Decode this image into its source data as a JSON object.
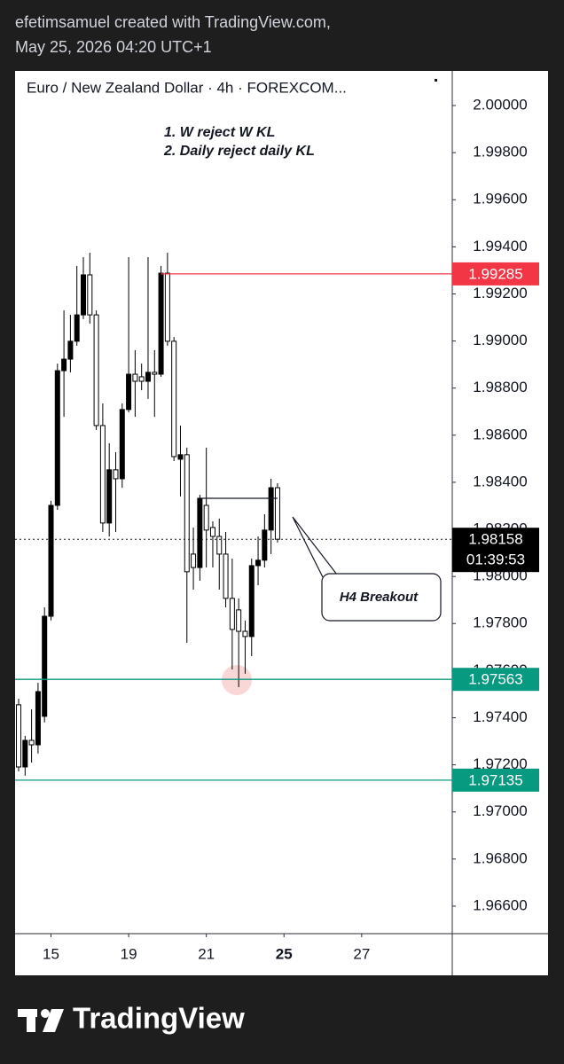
{
  "header": {
    "author_line": "efetimsamuel created with TradingView.com,",
    "date_line": "May 25, 2026 04:20 UTC+1"
  },
  "footer": {
    "brand": "TradingView"
  },
  "chart_data": {
    "type": "candlestick",
    "title": "Euro / New Zealand Dollar · 4h · FOREXCOM...",
    "annotations": [
      "1. W reject W KL",
      "2. Daily reject daily KL"
    ],
    "callout": "H4 Breakout",
    "up_color": "#000000",
    "down_color": "#ffffff",
    "open": [
      1.97455,
      1.97191,
      1.97304,
      1.97285,
      1.97406,
      1.97831,
      1.98302,
      1.98874,
      1.98923,
      1.98999,
      1.99111,
      1.99281,
      1.99111,
      1.98641,
      1.98227,
      1.98453,
      1.98415,
      1.98709,
      1.98859,
      1.98848,
      1.98829,
      1.98867,
      1.98859,
      1.99288,
      1.98999,
      1.98498,
      1.98517,
      1.98095,
      1.98038,
      1.98302,
      1.98208,
      1.9817,
      1.98095,
      1.97907,
      1.97858,
      1.97767,
      1.97745,
      1.98046,
      1.98069,
      1.98197,
      1.98377
    ],
    "high": [
      1.97481,
      1.97323,
      1.97436,
      1.97549,
      1.97869,
      1.98321,
      1.98904,
      1.9913,
      1.99111,
      1.99319,
      1.99356,
      1.99375,
      1.9913,
      1.98735,
      1.98566,
      1.98528,
      1.98735,
      1.99356,
      1.98961,
      1.98904,
      1.99356,
      1.98961,
      1.99319,
      1.99375,
      1.99017,
      1.98641,
      1.98547,
      1.98208,
      1.98347,
      1.98547,
      1.98234,
      1.98246,
      1.98189,
      1.98076,
      1.97907,
      1.97813,
      1.98076,
      1.9817,
      1.98264,
      1.98415,
      1.98396
    ],
    "low": [
      1.97172,
      1.97154,
      1.9721,
      1.97248,
      1.9738,
      1.97813,
      1.98283,
      1.98678,
      1.98867,
      1.9898,
      1.99093,
      1.99074,
      1.98622,
      1.98189,
      1.9817,
      1.98189,
      1.98377,
      1.98697,
      1.98678,
      1.98791,
      1.98754,
      1.98678,
      1.98848,
      1.9898,
      1.9849,
      1.9834,
      1.97718,
      1.97944,
      1.97982,
      1.98038,
      1.98038,
      1.97944,
      1.97869,
      1.97605,
      1.9753,
      1.97587,
      1.97662,
      1.97963,
      1.98038,
      1.98095,
      1.98144
    ],
    "close": [
      1.97191,
      1.97304,
      1.97285,
      1.97511,
      1.97831,
      1.98302,
      1.98874,
      1.98923,
      1.98999,
      1.99111,
      1.99281,
      1.99111,
      1.98641,
      1.98227,
      1.98453,
      1.98415,
      1.98709,
      1.98859,
      1.98829,
      1.98829,
      1.98867,
      1.98859,
      1.99288,
      1.98999,
      1.98509,
      1.98517,
      1.9802,
      1.98038,
      1.98332,
      1.98197,
      1.9817,
      1.98095,
      1.97907,
      1.97775,
      1.97767,
      1.97745,
      1.98046,
      1.98069,
      1.98197,
      1.98377,
      1.98158
    ],
    "countdown": "01:39:53",
    "xlim": [
      -0.55,
      67
    ],
    "xticks": [
      {
        "value": 5,
        "label": "15"
      },
      {
        "value": 17,
        "label": "19"
      },
      {
        "value": 29,
        "label": "21"
      },
      {
        "value": 41,
        "label": "25",
        "bold": true
      },
      {
        "value": 53,
        "label": "27"
      }
    ],
    "ylim": [
      1.96483,
      2.00147
    ],
    "yticks": [
      {
        "value": 2.0,
        "label": "2.00000"
      },
      {
        "value": 1.998,
        "label": "1.99800"
      },
      {
        "value": 1.996,
        "label": "1.99600"
      },
      {
        "value": 1.994,
        "label": "1.99400"
      },
      {
        "value": 1.992,
        "label": "1.99200"
      },
      {
        "value": 1.99,
        "label": "1.99000"
      },
      {
        "value": 1.988,
        "label": "1.98800"
      },
      {
        "value": 1.986,
        "label": "1.98600"
      },
      {
        "value": 1.984,
        "label": "1.98400"
      },
      {
        "value": 1.982,
        "label": "1.98200"
      },
      {
        "value": 1.98,
        "label": "1.98000"
      },
      {
        "value": 1.978,
        "label": "1.97800"
      },
      {
        "value": 1.976,
        "label": "1.97600"
      },
      {
        "value": 1.974,
        "label": "1.97400"
      },
      {
        "value": 1.972,
        "label": "1.97200"
      },
      {
        "value": 1.97,
        "label": "1.97000"
      },
      {
        "value": 1.968,
        "label": "1.96800"
      },
      {
        "value": 1.966,
        "label": "1.96600"
      }
    ],
    "levels": [
      {
        "value": 1.99285,
        "color": "#f23645",
        "from": 22
      },
      {
        "value": 1.97563,
        "color": "#089981"
      },
      {
        "value": 1.97135,
        "color": "#089981"
      }
    ],
    "breakout_line": {
      "value": 1.98332,
      "from": 28,
      "to": 40
    }
  }
}
